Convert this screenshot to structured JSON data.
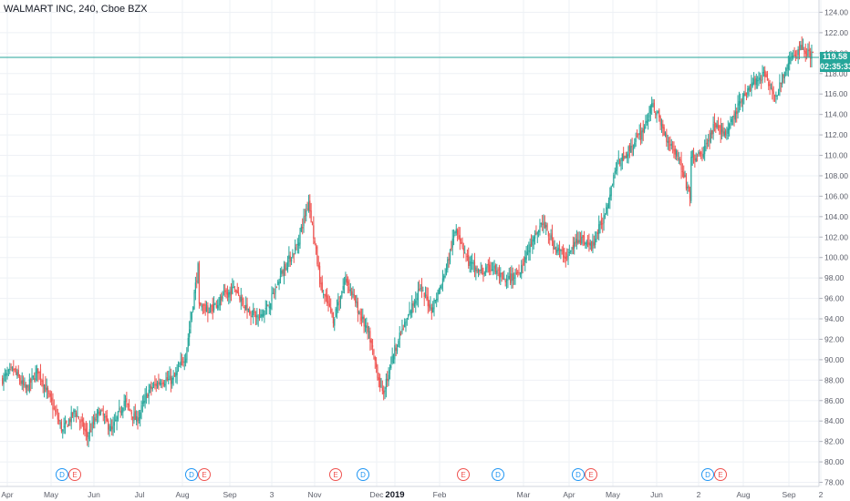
{
  "header": {
    "title": "WALMART INC, 240, Cboe BZX"
  },
  "last_price": {
    "value": "119.58",
    "countdown": "02:35:33"
  },
  "colors": {
    "up": "#26a69a",
    "down": "#ef5350",
    "grid": "#eef1f5",
    "price_line": "#26a69a",
    "dividend": "#2196f3",
    "earnings": "#ef5350",
    "text": "#131722",
    "axis_text": "#5d606b"
  },
  "chart_data": {
    "type": "candlestick",
    "title": "WALMART INC, 240, Cboe BZX",
    "ylim": [
      77.6,
      125.2
    ],
    "y_ticks": [
      "78.00",
      "80.00",
      "82.00",
      "84.00",
      "86.00",
      "88.00",
      "90.00",
      "92.00",
      "94.00",
      "96.00",
      "98.00",
      "100.00",
      "102.00",
      "104.00",
      "106.00",
      "108.00",
      "110.00",
      "112.00",
      "114.00",
      "116.00",
      "118.00",
      "120.00",
      "122.00",
      "124.00"
    ],
    "x_ticks": [
      "Apr",
      "May",
      "Jun",
      "Jul",
      "Aug",
      "Sep",
      "3",
      "Nov",
      "Dec",
      "2019",
      "Feb",
      "Mar",
      "Apr",
      "May",
      "Jun",
      "2",
      "Aug",
      "Sep",
      "2"
    ],
    "grid": true,
    "price_path": [
      {
        "t": "Apr",
        "p": 88
      },
      {
        "t": "Apr",
        "p": 89
      },
      {
        "t": "Apr",
        "p": 87
      },
      {
        "t": "May",
        "p": 89
      },
      {
        "t": "May",
        "p": 86
      },
      {
        "t": "May",
        "p": 83
      },
      {
        "t": "May",
        "p": 85
      },
      {
        "t": "Jun",
        "p": 82.5
      },
      {
        "t": "Jun",
        "p": 85
      },
      {
        "t": "Jun",
        "p": 83
      },
      {
        "t": "Jul",
        "p": 86
      },
      {
        "t": "Jul",
        "p": 84
      },
      {
        "t": "Jul",
        "p": 87
      },
      {
        "t": "Jul",
        "p": 88
      },
      {
        "t": "Aug",
        "p": 88
      },
      {
        "t": "Aug",
        "p": 90.5
      },
      {
        "t": "Aug",
        "p": 99
      },
      {
        "t": "Aug",
        "p": 95
      },
      {
        "t": "Sep",
        "p": 96
      },
      {
        "t": "Sep",
        "p": 97
      },
      {
        "t": "Sep",
        "p": 95
      },
      {
        "t": "3",
        "p": 94
      },
      {
        "t": "3",
        "p": 96
      },
      {
        "t": "3",
        "p": 99
      },
      {
        "t": "3",
        "p": 101
      },
      {
        "t": "Nov",
        "p": 105.5
      },
      {
        "t": "Nov",
        "p": 97
      },
      {
        "t": "Nov",
        "p": 94
      },
      {
        "t": "Nov",
        "p": 98
      },
      {
        "t": "Dec",
        "p": 95
      },
      {
        "t": "Dec",
        "p": 92
      },
      {
        "t": "Dec",
        "p": 86.5
      },
      {
        "t": "Dec",
        "p": 91
      },
      {
        "t": "2019",
        "p": 94
      },
      {
        "t": "2019",
        "p": 97
      },
      {
        "t": "2019",
        "p": 95
      },
      {
        "t": "2019",
        "p": 98
      },
      {
        "t": "Feb",
        "p": 103
      },
      {
        "t": "Feb",
        "p": 99.5
      },
      {
        "t": "Feb",
        "p": 98.5
      },
      {
        "t": "Mar",
        "p": 99
      },
      {
        "t": "Mar",
        "p": 97.5
      },
      {
        "t": "Mar",
        "p": 98.5
      },
      {
        "t": "Apr",
        "p": 101
      },
      {
        "t": "Apr",
        "p": 103.5
      },
      {
        "t": "Apr",
        "p": 101
      },
      {
        "t": "May",
        "p": 100
      },
      {
        "t": "May",
        "p": 102
      },
      {
        "t": "May",
        "p": 101
      },
      {
        "t": "Jun",
        "p": 104
      },
      {
        "t": "Jun",
        "p": 109
      },
      {
        "t": "Jun",
        "p": 110.5
      },
      {
        "t": "2",
        "p": 112
      },
      {
        "t": "2",
        "p": 115
      },
      {
        "t": "2",
        "p": 112
      },
      {
        "t": "Aug",
        "p": 110
      },
      {
        "t": "Aug",
        "p": 106
      },
      {
        "t": "Aug",
        "p": 110
      },
      {
        "t": "Aug",
        "p": 113
      },
      {
        "t": "Sep",
        "p": 112
      },
      {
        "t": "Sep",
        "p": 115
      },
      {
        "t": "Sep",
        "p": 117
      },
      {
        "t": "2",
        "p": 118
      },
      {
        "t": "2",
        "p": 116
      },
      {
        "t": "2",
        "p": 119
      },
      {
        "t": "2",
        "p": 120.5
      },
      {
        "t": "2",
        "p": 119.6
      }
    ],
    "gaps_after": [
      16,
      56
    ],
    "gap_moves": [
      8.5,
      -4
    ],
    "events": [
      {
        "t": "May",
        "label": "D",
        "kind": "dividend"
      },
      {
        "t": "May",
        "label": "E",
        "kind": "earnings"
      },
      {
        "t": "Aug",
        "label": "D",
        "kind": "dividend"
      },
      {
        "t": "Aug",
        "label": "E",
        "kind": "earnings"
      },
      {
        "t": "Nov",
        "label": "E",
        "kind": "earnings"
      },
      {
        "t": "Dec",
        "label": "D",
        "kind": "dividend"
      },
      {
        "t": "Feb",
        "label": "E",
        "kind": "earnings"
      },
      {
        "t": "Mar",
        "label": "D",
        "kind": "dividend"
      },
      {
        "t": "May",
        "label": "D",
        "kind": "dividend"
      },
      {
        "t": "May",
        "label": "E",
        "kind": "earnings"
      },
      {
        "t": "Aug",
        "label": "D",
        "kind": "dividend"
      },
      {
        "t": "Aug",
        "label": "E",
        "kind": "earnings"
      }
    ]
  }
}
